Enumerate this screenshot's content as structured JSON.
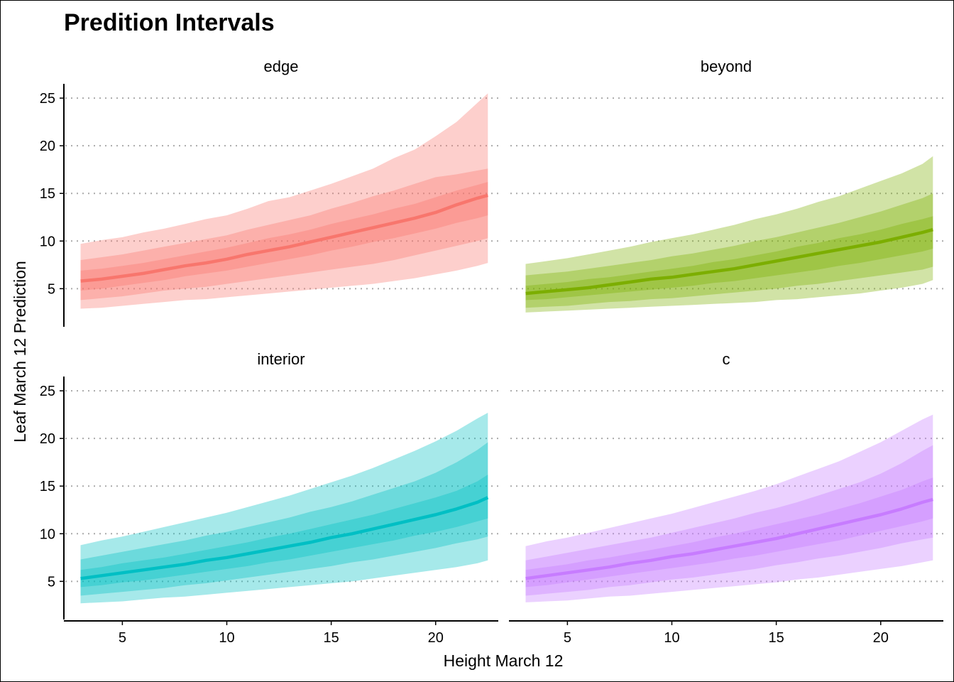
{
  "chart_data": {
    "type": "area",
    "title": "Predition Intervals",
    "xlabel": "Height March 12",
    "ylabel": "Leaf March 12 Prediction",
    "xlim": [
      2.2,
      23.0
    ],
    "ylim": [
      1.0,
      26.5
    ],
    "xticks": [
      5,
      10,
      15,
      20
    ],
    "yticks": [
      5,
      10,
      15,
      20,
      25
    ],
    "grid": "horizontal dotted",
    "legend": "none",
    "x": [
      3,
      4,
      5,
      6,
      7,
      8,
      9,
      10,
      11,
      12,
      13,
      14,
      15,
      16,
      17,
      18,
      19,
      20,
      21,
      22,
      22.5
    ],
    "panels": [
      {
        "name": "edge",
        "color": "#f8766d",
        "median": [
          5.8,
          6.0,
          6.3,
          6.6,
          7.0,
          7.4,
          7.7,
          8.1,
          8.6,
          9.0,
          9.4,
          9.9,
          10.4,
          10.9,
          11.4,
          11.9,
          12.4,
          13.0,
          13.8,
          14.5,
          14.8
        ],
        "lower_95": [
          2.9,
          3.0,
          3.2,
          3.4,
          3.6,
          3.8,
          3.9,
          4.1,
          4.3,
          4.5,
          4.7,
          4.9,
          5.1,
          5.3,
          5.5,
          5.8,
          6.1,
          6.5,
          6.9,
          7.4,
          7.7
        ],
        "upper_95": [
          9.7,
          10.1,
          10.4,
          10.9,
          11.3,
          11.8,
          12.3,
          12.7,
          13.4,
          14.2,
          14.6,
          15.3,
          16.0,
          16.8,
          17.6,
          18.7,
          19.6,
          21.0,
          22.5,
          24.5,
          25.5
        ],
        "lower_80": [
          3.8,
          4.0,
          4.2,
          4.5,
          4.8,
          5.0,
          5.2,
          5.5,
          5.8,
          6.1,
          6.4,
          6.7,
          7.0,
          7.3,
          7.6,
          8.0,
          8.5,
          9.0,
          9.5,
          10.0,
          10.3
        ],
        "upper_80": [
          8.0,
          8.3,
          8.6,
          9.0,
          9.4,
          9.8,
          10.2,
          10.6,
          11.2,
          11.7,
          12.2,
          12.7,
          13.4,
          14.0,
          14.7,
          15.3,
          16.0,
          16.7,
          17.0,
          17.4,
          17.6
        ],
        "lower_50": [
          4.8,
          5.0,
          5.3,
          5.6,
          5.9,
          6.3,
          6.6,
          6.9,
          7.3,
          7.7,
          8.1,
          8.5,
          9.0,
          9.4,
          9.9,
          10.3,
          10.8,
          11.3,
          11.9,
          12.4,
          12.7
        ],
        "upper_50": [
          6.9,
          7.1,
          7.4,
          7.7,
          8.1,
          8.5,
          8.9,
          9.3,
          9.8,
          10.3,
          10.7,
          11.2,
          11.8,
          12.3,
          12.8,
          13.4,
          13.9,
          14.6,
          15.3,
          15.9,
          16.2
        ]
      },
      {
        "name": "beyond",
        "color": "#7cae00",
        "median": [
          4.5,
          4.7,
          4.9,
          5.1,
          5.4,
          5.7,
          6.0,
          6.2,
          6.5,
          6.8,
          7.1,
          7.5,
          7.9,
          8.3,
          8.7,
          9.1,
          9.5,
          9.9,
          10.4,
          10.9,
          11.2
        ],
        "lower_95": [
          2.5,
          2.6,
          2.7,
          2.8,
          2.9,
          3.0,
          3.1,
          3.2,
          3.3,
          3.4,
          3.5,
          3.6,
          3.8,
          3.9,
          4.1,
          4.3,
          4.5,
          4.8,
          5.1,
          5.5,
          5.9
        ],
        "upper_95": [
          7.6,
          7.9,
          8.2,
          8.6,
          9.0,
          9.4,
          9.9,
          10.3,
          10.7,
          11.2,
          11.7,
          12.3,
          12.8,
          13.4,
          14.1,
          14.7,
          15.5,
          16.3,
          17.1,
          18.1,
          18.9
        ],
        "lower_80": [
          3.0,
          3.1,
          3.2,
          3.4,
          3.6,
          3.7,
          3.9,
          4.0,
          4.2,
          4.4,
          4.6,
          4.8,
          5.0,
          5.3,
          5.5,
          5.8,
          6.1,
          6.4,
          6.7,
          7.0,
          7.3
        ],
        "upper_80": [
          6.4,
          6.6,
          6.8,
          7.1,
          7.4,
          7.7,
          8.0,
          8.4,
          8.7,
          9.1,
          9.5,
          10.0,
          10.4,
          10.9,
          11.4,
          11.9,
          12.5,
          13.1,
          13.8,
          14.5,
          15.0
        ],
        "lower_50": [
          3.8,
          3.9,
          4.1,
          4.3,
          4.5,
          4.7,
          4.9,
          5.1,
          5.3,
          5.6,
          5.8,
          6.1,
          6.4,
          6.7,
          7.0,
          7.4,
          7.7,
          8.1,
          8.5,
          8.9,
          9.2
        ],
        "upper_50": [
          5.3,
          5.5,
          5.7,
          6.0,
          6.2,
          6.5,
          6.8,
          7.1,
          7.4,
          7.8,
          8.1,
          8.5,
          8.9,
          9.4,
          9.8,
          10.3,
          10.7,
          11.2,
          11.8,
          12.3,
          12.6
        ]
      },
      {
        "name": "interior",
        "color": "#00bfc4",
        "median": [
          5.3,
          5.6,
          5.9,
          6.2,
          6.5,
          6.8,
          7.2,
          7.5,
          7.9,
          8.3,
          8.7,
          9.1,
          9.6,
          10.0,
          10.5,
          11.0,
          11.5,
          12.0,
          12.6,
          13.3,
          13.8
        ],
        "lower_95": [
          2.7,
          2.8,
          2.9,
          3.1,
          3.3,
          3.4,
          3.6,
          3.8,
          4.0,
          4.2,
          4.4,
          4.6,
          4.8,
          5.0,
          5.3,
          5.6,
          5.9,
          6.2,
          6.5,
          6.9,
          7.2
        ],
        "upper_95": [
          8.8,
          9.3,
          9.7,
          10.2,
          10.7,
          11.2,
          11.7,
          12.2,
          12.8,
          13.4,
          14.0,
          14.7,
          15.4,
          16.1,
          16.9,
          17.8,
          18.7,
          19.7,
          20.8,
          22.1,
          22.7
        ],
        "lower_80": [
          3.5,
          3.7,
          3.9,
          4.1,
          4.3,
          4.6,
          4.8,
          5.1,
          5.4,
          5.7,
          6.0,
          6.3,
          6.6,
          7.0,
          7.3,
          7.7,
          8.1,
          8.5,
          9.0,
          9.4,
          9.7
        ],
        "upper_80": [
          7.3,
          7.7,
          8.1,
          8.5,
          8.9,
          9.3,
          9.8,
          10.2,
          10.7,
          11.2,
          11.7,
          12.3,
          12.8,
          13.4,
          14.1,
          14.8,
          15.5,
          16.4,
          17.5,
          18.8,
          19.6
        ],
        "lower_50": [
          4.4,
          4.6,
          4.9,
          5.1,
          5.4,
          5.7,
          6.0,
          6.3,
          6.6,
          7.0,
          7.3,
          7.7,
          8.1,
          8.5,
          8.9,
          9.3,
          9.8,
          10.2,
          10.7,
          11.3,
          11.6
        ],
        "upper_50": [
          6.2,
          6.5,
          6.9,
          7.2,
          7.5,
          7.9,
          8.3,
          8.7,
          9.1,
          9.6,
          10.0,
          10.5,
          11.0,
          11.5,
          12.0,
          12.6,
          13.2,
          13.8,
          14.5,
          15.5,
          16.2
        ]
      },
      {
        "name": "c",
        "color": "#c77cff",
        "median": [
          5.3,
          5.6,
          5.9,
          6.2,
          6.5,
          6.9,
          7.2,
          7.6,
          7.9,
          8.3,
          8.7,
          9.1,
          9.5,
          10.0,
          10.5,
          11.0,
          11.5,
          12.0,
          12.6,
          13.3,
          13.6
        ],
        "lower_95": [
          2.8,
          2.9,
          3.0,
          3.2,
          3.4,
          3.5,
          3.7,
          3.9,
          4.1,
          4.3,
          4.5,
          4.7,
          4.9,
          5.2,
          5.4,
          5.7,
          6.0,
          6.3,
          6.6,
          7.0,
          7.2
        ],
        "upper_95": [
          8.7,
          9.2,
          9.6,
          10.1,
          10.6,
          11.1,
          11.6,
          12.1,
          12.7,
          13.3,
          13.9,
          14.5,
          15.2,
          16.0,
          16.8,
          17.6,
          18.6,
          19.6,
          20.8,
          22.0,
          22.5
        ],
        "lower_80": [
          3.5,
          3.7,
          3.9,
          4.1,
          4.4,
          4.6,
          4.9,
          5.2,
          5.4,
          5.7,
          6.0,
          6.3,
          6.7,
          7.0,
          7.4,
          7.7,
          8.1,
          8.5,
          9.0,
          9.4,
          9.6
        ],
        "upper_80": [
          7.2,
          7.6,
          8.0,
          8.4,
          8.8,
          9.2,
          9.6,
          10.1,
          10.6,
          11.1,
          11.6,
          12.2,
          12.7,
          13.3,
          14.0,
          14.7,
          15.4,
          16.3,
          17.4,
          18.7,
          19.3
        ],
        "lower_50": [
          4.4,
          4.6,
          4.9,
          5.2,
          5.5,
          5.8,
          6.1,
          6.4,
          6.7,
          7.0,
          7.4,
          7.7,
          8.1,
          8.5,
          8.9,
          9.3,
          9.8,
          10.3,
          10.8,
          11.3,
          11.6
        ],
        "upper_50": [
          6.2,
          6.5,
          6.8,
          7.2,
          7.5,
          7.9,
          8.3,
          8.7,
          9.1,
          9.6,
          10.0,
          10.5,
          11.0,
          11.5,
          12.0,
          12.6,
          13.2,
          13.9,
          14.6,
          15.5,
          15.9
        ]
      }
    ]
  }
}
